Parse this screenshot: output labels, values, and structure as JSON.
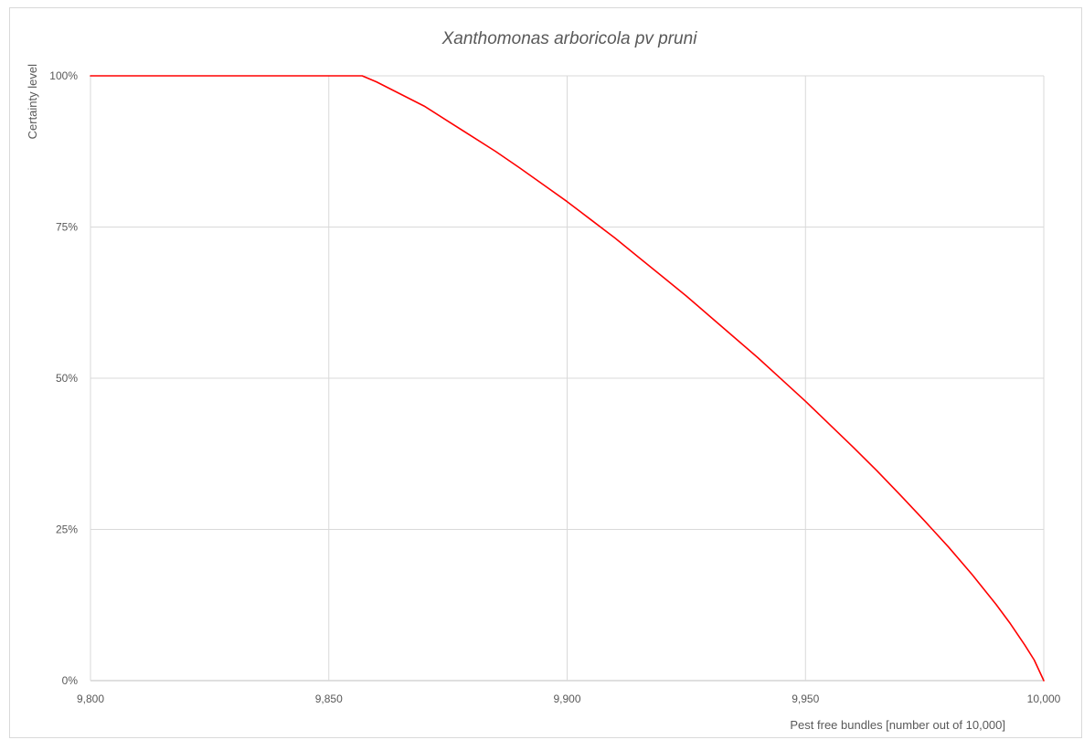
{
  "chart_data": {
    "type": "line",
    "title": "Xanthomonas arboricola pv pruni",
    "xlabel": "Pest free bundles [number out of 10,000]",
    "ylabel": "Certainty level",
    "xlim": [
      9800,
      10000
    ],
    "ylim": [
      0,
      1
    ],
    "x_ticks": [
      9800,
      9850,
      9900,
      9950,
      10000
    ],
    "x_tick_labels": [
      "9,800",
      "9,850",
      "9,900",
      "9,950",
      "10,000"
    ],
    "y_ticks": [
      0,
      0.25,
      0.5,
      0.75,
      1
    ],
    "y_tick_labels": [
      "0%",
      "25%",
      "50%",
      "75%",
      "100%"
    ],
    "grid": true,
    "legend": "none",
    "series": [
      {
        "color": "#ff0000",
        "x": [
          9800,
          9820,
          9840,
          9850,
          9855,
          9857,
          9860,
          9865,
          9870,
          9875,
          9880,
          9885,
          9890,
          9895,
          9900,
          9905,
          9910,
          9915,
          9920,
          9925,
          9930,
          9935,
          9940,
          9945,
          9950,
          9955,
          9960,
          9965,
          9970,
          9975,
          9980,
          9985,
          9990,
          9993,
          9996,
          9998,
          10000
        ],
        "y": [
          1.0,
          1.0,
          1.0,
          1.0,
          1.0,
          1.0,
          0.99,
          0.97,
          0.95,
          0.925,
          0.9,
          0.875,
          0.848,
          0.82,
          0.792,
          0.762,
          0.732,
          0.7,
          0.668,
          0.636,
          0.602,
          0.568,
          0.534,
          0.498,
          0.462,
          0.424,
          0.386,
          0.347,
          0.306,
          0.264,
          0.221,
          0.175,
          0.126,
          0.094,
          0.059,
          0.034,
          0.0
        ]
      }
    ]
  }
}
